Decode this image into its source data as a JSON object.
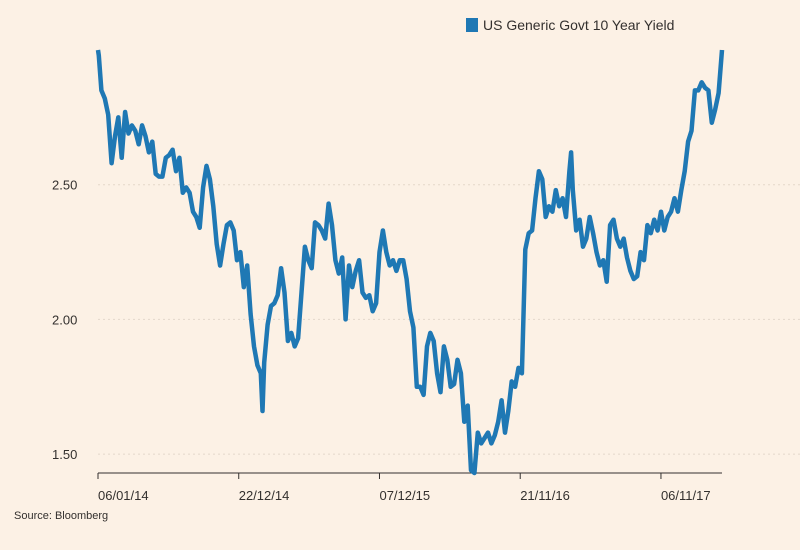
{
  "chart_data": {
    "type": "line",
    "title": "",
    "xlabel": "",
    "ylabel": "",
    "series": [
      {
        "name": "US Generic Govt 10 Year Yield",
        "color": "#1F78B4",
        "points": [
          [
            0,
            3.0
          ],
          [
            0.5,
            2.98
          ],
          [
            2,
            2.85
          ],
          [
            4,
            2.82
          ],
          [
            6,
            2.76
          ],
          [
            8,
            2.58
          ],
          [
            10,
            2.68
          ],
          [
            12,
            2.75
          ],
          [
            14,
            2.6
          ],
          [
            16,
            2.77
          ],
          [
            18,
            2.69
          ],
          [
            20,
            2.72
          ],
          [
            22,
            2.7
          ],
          [
            24,
            2.65
          ],
          [
            26,
            2.72
          ],
          [
            28,
            2.68
          ],
          [
            30,
            2.62
          ],
          [
            32,
            2.66
          ],
          [
            34,
            2.54
          ],
          [
            36,
            2.53
          ],
          [
            38,
            2.53
          ],
          [
            40,
            2.6
          ],
          [
            42,
            2.61
          ],
          [
            44,
            2.63
          ],
          [
            46,
            2.55
          ],
          [
            48,
            2.6
          ],
          [
            50,
            2.47
          ],
          [
            52,
            2.49
          ],
          [
            54,
            2.47
          ],
          [
            56,
            2.4
          ],
          [
            58,
            2.38
          ],
          [
            60,
            2.34
          ],
          [
            62,
            2.49
          ],
          [
            64,
            2.57
          ],
          [
            66,
            2.52
          ],
          [
            68,
            2.42
          ],
          [
            70,
            2.28
          ],
          [
            72,
            2.2
          ],
          [
            74,
            2.28
          ],
          [
            76,
            2.35
          ],
          [
            78,
            2.36
          ],
          [
            80,
            2.33
          ],
          [
            82,
            2.22
          ],
          [
            84,
            2.25
          ],
          [
            86,
            2.12
          ],
          [
            88,
            2.2
          ],
          [
            90,
            2.02
          ],
          [
            92,
            1.9
          ],
          [
            94,
            1.83
          ],
          [
            96,
            1.8
          ],
          [
            97,
            1.66
          ],
          [
            98,
            1.84
          ],
          [
            100,
            1.98
          ],
          [
            102,
            2.05
          ],
          [
            104,
            2.06
          ],
          [
            106,
            2.09
          ],
          [
            108,
            2.19
          ],
          [
            110,
            2.1
          ],
          [
            112,
            1.92
          ],
          [
            114,
            1.95
          ],
          [
            116,
            1.9
          ],
          [
            118,
            1.93
          ],
          [
            120,
            2.1
          ],
          [
            122,
            2.27
          ],
          [
            124,
            2.22
          ],
          [
            126,
            2.19
          ],
          [
            128,
            2.36
          ],
          [
            130,
            2.35
          ],
          [
            132,
            2.33
          ],
          [
            134,
            2.3
          ],
          [
            136,
            2.43
          ],
          [
            138,
            2.35
          ],
          [
            140,
            2.22
          ],
          [
            142,
            2.17
          ],
          [
            144,
            2.23
          ],
          [
            146,
            2.0
          ],
          [
            148,
            2.2
          ],
          [
            150,
            2.12
          ],
          [
            152,
            2.18
          ],
          [
            154,
            2.22
          ],
          [
            156,
            2.1
          ],
          [
            158,
            2.08
          ],
          [
            160,
            2.09
          ],
          [
            162,
            2.03
          ],
          [
            164,
            2.06
          ],
          [
            166,
            2.25
          ],
          [
            168,
            2.33
          ],
          [
            170,
            2.25
          ],
          [
            172,
            2.2
          ],
          [
            174,
            2.22
          ],
          [
            176,
            2.18
          ],
          [
            178,
            2.22
          ],
          [
            180,
            2.22
          ],
          [
            182,
            2.15
          ],
          [
            184,
            2.03
          ],
          [
            186,
            1.97
          ],
          [
            188,
            1.75
          ],
          [
            190,
            1.75
          ],
          [
            192,
            1.72
          ],
          [
            194,
            1.9
          ],
          [
            196,
            1.95
          ],
          [
            198,
            1.92
          ],
          [
            200,
            1.8
          ],
          [
            202,
            1.73
          ],
          [
            204,
            1.9
          ],
          [
            206,
            1.85
          ],
          [
            208,
            1.75
          ],
          [
            210,
            1.76
          ],
          [
            212,
            1.85
          ],
          [
            214,
            1.8
          ],
          [
            216,
            1.62
          ],
          [
            218,
            1.68
          ],
          [
            220,
            1.44
          ],
          [
            222,
            1.43
          ],
          [
            224,
            1.58
          ],
          [
            226,
            1.54
          ],
          [
            228,
            1.56
          ],
          [
            230,
            1.58
          ],
          [
            232,
            1.54
          ],
          [
            234,
            1.57
          ],
          [
            236,
            1.62
          ],
          [
            238,
            1.7
          ],
          [
            240,
            1.58
          ],
          [
            242,
            1.66
          ],
          [
            244,
            1.77
          ],
          [
            246,
            1.75
          ],
          [
            248,
            1.82
          ],
          [
            250,
            1.8
          ],
          [
            252,
            2.26
          ],
          [
            254,
            2.32
          ],
          [
            256,
            2.33
          ],
          [
            258,
            2.45
          ],
          [
            260,
            2.55
          ],
          [
            262,
            2.52
          ],
          [
            264,
            2.38
          ],
          [
            266,
            2.42
          ],
          [
            268,
            2.4
          ],
          [
            270,
            2.48
          ],
          [
            272,
            2.42
          ],
          [
            274,
            2.45
          ],
          [
            276,
            2.38
          ],
          [
            278,
            2.55
          ],
          [
            279,
            2.62
          ],
          [
            280,
            2.48
          ],
          [
            282,
            2.33
          ],
          [
            284,
            2.37
          ],
          [
            286,
            2.27
          ],
          [
            288,
            2.3
          ],
          [
            290,
            2.38
          ],
          [
            292,
            2.32
          ],
          [
            294,
            2.25
          ],
          [
            296,
            2.2
          ],
          [
            298,
            2.22
          ],
          [
            300,
            2.14
          ],
          [
            302,
            2.35
          ],
          [
            304,
            2.37
          ],
          [
            306,
            2.3
          ],
          [
            308,
            2.27
          ],
          [
            310,
            2.3
          ],
          [
            312,
            2.23
          ],
          [
            314,
            2.18
          ],
          [
            316,
            2.15
          ],
          [
            318,
            2.16
          ],
          [
            320,
            2.25
          ],
          [
            322,
            2.22
          ],
          [
            324,
            2.35
          ],
          [
            326,
            2.32
          ],
          [
            328,
            2.37
          ],
          [
            330,
            2.33
          ],
          [
            332,
            2.4
          ],
          [
            334,
            2.33
          ],
          [
            336,
            2.38
          ],
          [
            338,
            2.4
          ],
          [
            340,
            2.45
          ],
          [
            342,
            2.4
          ],
          [
            344,
            2.48
          ],
          [
            346,
            2.55
          ],
          [
            348,
            2.66
          ],
          [
            350,
            2.7
          ],
          [
            352,
            2.85
          ],
          [
            354,
            2.85
          ],
          [
            356,
            2.88
          ],
          [
            358,
            2.86
          ],
          [
            360,
            2.85
          ],
          [
            362,
            2.73
          ],
          [
            364,
            2.78
          ],
          [
            366,
            2.84
          ],
          [
            368,
            3.0
          ]
        ]
      }
    ],
    "x_ticks": [
      {
        "pos": 0,
        "label": "06/01/14"
      },
      {
        "pos": 83,
        "label": "22/12/14"
      },
      {
        "pos": 166,
        "label": "07/12/15"
      },
      {
        "pos": 249,
        "label": "21/11/16"
      },
      {
        "pos": 332,
        "label": "06/11/17"
      }
    ],
    "xlim": [
      0,
      368
    ],
    "yticks": [
      1.5,
      2.0,
      2.5
    ],
    "y_tick_labels": [
      "1.50",
      "2.00",
      "2.50"
    ],
    "ylim": [
      1.43,
      3.0
    ],
    "grid": true,
    "legend_position": "top-right",
    "source": "Source: Bloomberg"
  }
}
